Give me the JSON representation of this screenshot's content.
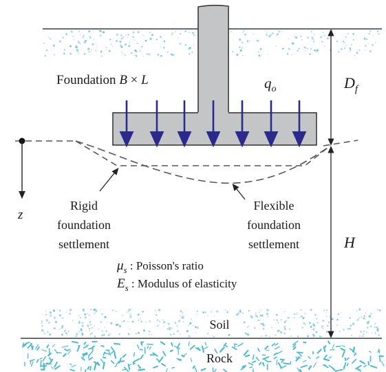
{
  "labels": {
    "foundation_prefix": "Foundation ",
    "foundation_b": "B",
    "foundation_times": " × ",
    "foundation_l": "L",
    "load_symbol": "q",
    "load_sub": "o",
    "depth_symbol": "D",
    "depth_sub": "f",
    "z_axis": "z",
    "layer_thickness": "H",
    "rigid_line1": "Rigid",
    "rigid_line2": "foundation",
    "rigid_line3": "settlement",
    "flexible_line1": "Flexible",
    "flexible_line2": "foundation",
    "flexible_line3": "settlement",
    "poisson_symbol": "μ",
    "poisson_sub": "s",
    "poisson_text": " : Poisson's ratio",
    "modulus_symbol": "E",
    "modulus_sub": "s",
    "modulus_text": " : Modulus of elasticity",
    "soil": "Soil",
    "rock": "Rock"
  },
  "colors": {
    "soil_dots": "#7cc3dc",
    "rock_texture": "#49b9d6",
    "load_arrow": "#2b2a8c",
    "foundation_fill": "#c4c5c7",
    "foundation_stroke": "#3a3a3a",
    "ground_line": "#6b6e70",
    "dashed_line": "#555555"
  }
}
